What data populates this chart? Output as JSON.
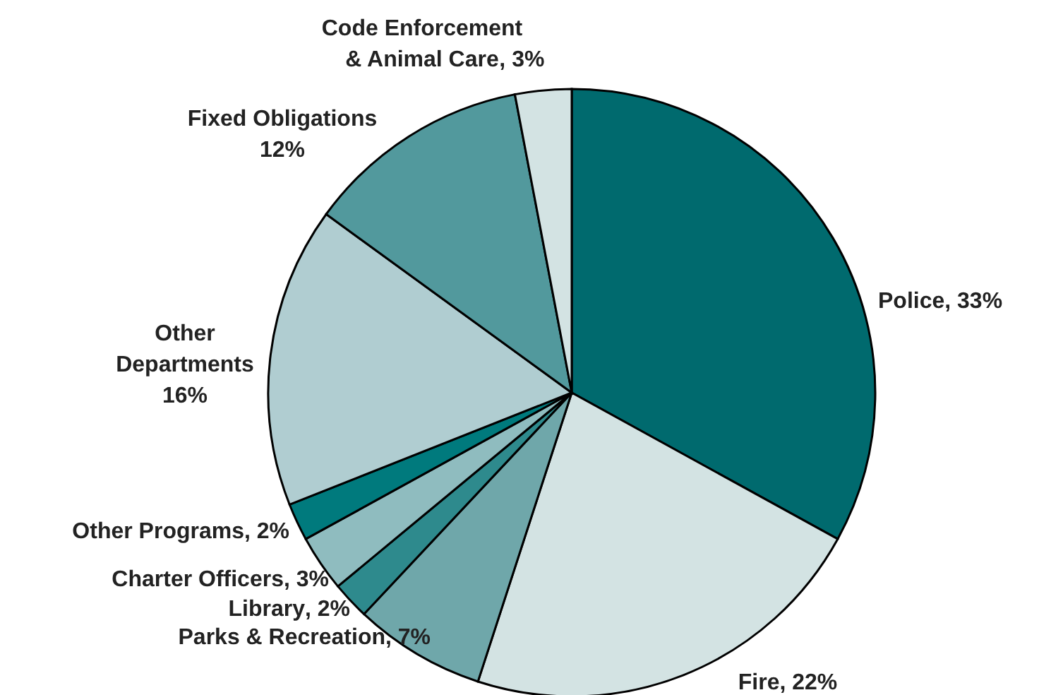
{
  "chart_data": {
    "type": "pie",
    "categories": [
      "Police",
      "Fire",
      "Parks & Recreation",
      "Library",
      "Charter Officers",
      "Other Programs",
      "Other Departments",
      "Fixed Obligations",
      "Code Enforcement & Animal Care"
    ],
    "values": [
      33,
      22,
      7,
      2,
      3,
      2,
      16,
      12,
      3
    ],
    "colors": [
      "#006a6e",
      "#d3e3e3",
      "#6fa7aa",
      "#2e8a8d",
      "#8fbcbf",
      "#007a7d",
      "#b0cdd1",
      "#52999d",
      "#d3e3e3"
    ],
    "value_labels": [
      ", 33%",
      ", 22%",
      ", 7%",
      ", 2%",
      ", 3%",
      ", 2%",
      "16%",
      "12%",
      ", 3%"
    ]
  }
}
